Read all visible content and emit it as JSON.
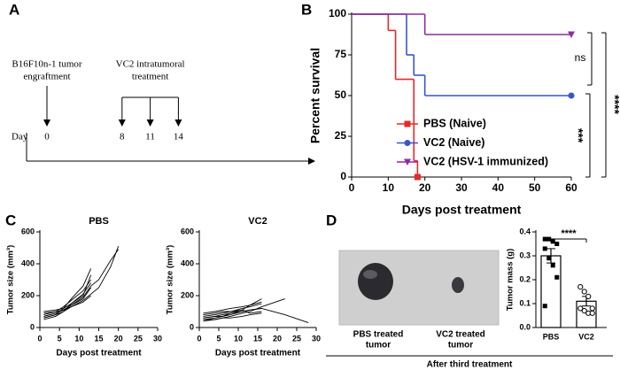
{
  "panels": [
    "A",
    "B",
    "C",
    "D"
  ],
  "timeline": {
    "day_label": "Day",
    "events": [
      {
        "lines": [
          "B16F10n-1 tumor",
          "engraftment"
        ],
        "days": [
          0
        ]
      },
      {
        "lines": [
          "VC2 intratumoral",
          "treatment"
        ],
        "days": [
          8,
          11,
          14
        ]
      }
    ]
  },
  "photo": {
    "labels": [
      [
        "PBS treated",
        "tumor"
      ],
      [
        "VC2 treated",
        "tumor"
      ]
    ],
    "caption": "After third treatment"
  },
  "chart_data": [
    {
      "type": "step",
      "ylabel": "Percent survival",
      "xlabel": "Days post treatment",
      "xlim": [
        0,
        60
      ],
      "xticks": [
        0,
        10,
        20,
        30,
        40,
        50,
        60
      ],
      "ylim": [
        0,
        100
      ],
      "yticks": [
        0,
        25,
        50,
        75,
        100
      ],
      "series": [
        {
          "name": "PBS (Naive)",
          "color": "#e8282b",
          "marker": "square",
          "x": [
            0,
            10,
            12,
            17,
            18
          ],
          "values": [
            100,
            90,
            60,
            10,
            0
          ]
        },
        {
          "name": "VC2 (Naive)",
          "color": "#3a55c4",
          "marker": "circle",
          "x": [
            0,
            15,
            17,
            20,
            60
          ],
          "values": [
            100,
            75,
            62.5,
            50,
            50
          ]
        },
        {
          "name": "VC2 (HSV-1 immunized)",
          "color": "#8e2c9e",
          "marker": "triangle",
          "x": [
            0,
            20,
            60
          ],
          "values": [
            100,
            87.5,
            87.5
          ]
        }
      ],
      "annotations": [
        "ns",
        "****",
        "***"
      ]
    },
    {
      "type": "line",
      "title": "PBS",
      "xlabel": "Days post treatment",
      "ylabel": "Tumor size (mm³)",
      "xlim": [
        0,
        30
      ],
      "xticks": [
        0,
        5,
        10,
        15,
        20,
        25,
        30
      ],
      "ylim": [
        0,
        600
      ],
      "yticks": [
        0,
        200,
        400,
        600
      ],
      "color": "#000000",
      "series": [
        {
          "x": [
            1,
            4,
            6,
            8,
            11,
            13
          ],
          "values": [
            60,
            80,
            120,
            180,
            260,
            370
          ]
        },
        {
          "x": [
            1,
            4,
            6,
            8,
            11,
            13
          ],
          "values": [
            80,
            100,
            130,
            170,
            230,
            300
          ]
        },
        {
          "x": [
            1,
            4,
            6,
            8,
            11,
            13
          ],
          "values": [
            50,
            70,
            100,
            150,
            210,
            280
          ]
        },
        {
          "x": [
            1,
            4,
            6,
            8,
            11,
            13
          ],
          "values": [
            70,
            90,
            110,
            140,
            180,
            250
          ]
        },
        {
          "x": [
            1,
            4,
            6,
            8,
            11,
            13
          ],
          "values": [
            90,
            100,
            110,
            130,
            160,
            200
          ]
        },
        {
          "x": [
            1,
            4,
            6,
            8,
            11,
            13,
            15,
            18,
            20
          ],
          "values": [
            60,
            80,
            100,
            130,
            170,
            210,
            250,
            380,
            510
          ]
        },
        {
          "x": [
            1,
            4,
            6,
            8,
            11,
            13,
            15,
            18,
            20
          ],
          "values": [
            70,
            90,
            110,
            140,
            190,
            260,
            300,
            420,
            490
          ]
        },
        {
          "x": [
            1,
            4,
            6,
            8,
            11,
            13
          ],
          "values": [
            100,
            110,
            120,
            150,
            200,
            330
          ]
        }
      ]
    },
    {
      "type": "line",
      "title": "VC2",
      "xlabel": "Days post treatment",
      "ylabel": "Tumor size (mm³)",
      "xlim": [
        0,
        30
      ],
      "xticks": [
        0,
        5,
        10,
        15,
        20,
        25,
        30
      ],
      "ylim": [
        0,
        600
      ],
      "yticks": [
        0,
        200,
        400,
        600
      ],
      "color": "#000000",
      "series": [
        {
          "x": [
            1,
            4,
            6,
            8,
            11,
            13,
            16
          ],
          "values": [
            50,
            60,
            70,
            90,
            110,
            140,
            180
          ]
        },
        {
          "x": [
            1,
            4,
            6,
            8,
            11,
            13,
            16
          ],
          "values": [
            70,
            80,
            90,
            100,
            120,
            130,
            150
          ]
        },
        {
          "x": [
            1,
            4,
            6,
            8,
            11,
            13,
            16
          ],
          "values": [
            60,
            70,
            70,
            80,
            100,
            110,
            120
          ]
        },
        {
          "x": [
            1,
            4,
            6,
            8,
            11,
            13,
            16,
            22
          ],
          "values": [
            40,
            50,
            60,
            70,
            90,
            100,
            130,
            180
          ]
        },
        {
          "x": [
            1,
            4,
            6,
            8,
            11,
            13,
            16
          ],
          "values": [
            80,
            90,
            100,
            100,
            110,
            90,
            100
          ]
        },
        {
          "x": [
            1,
            4,
            6,
            8,
            11,
            13,
            16
          ],
          "values": [
            50,
            50,
            60,
            60,
            70,
            80,
            90
          ]
        },
        {
          "x": [
            1,
            4,
            6,
            8,
            11,
            13,
            16,
            22,
            28
          ],
          "values": [
            60,
            70,
            80,
            90,
            100,
            110,
            120,
            80,
            30
          ]
        },
        {
          "x": [
            1,
            4,
            6,
            8,
            11,
            13,
            16
          ],
          "values": [
            90,
            100,
            110,
            120,
            130,
            140,
            160
          ]
        }
      ]
    },
    {
      "type": "bar",
      "ylabel": "Tumor mass (g)",
      "categories": [
        "PBS",
        "VC2"
      ],
      "values": [
        0.3,
        0.11
      ],
      "errors": [
        0.03,
        0.02
      ],
      "points": [
        [
          0.37,
          0.37,
          0.36,
          0.35,
          0.33,
          0.29,
          0.26,
          0.21,
          0.09
        ],
        [
          0.17,
          0.15,
          0.13,
          0.08,
          0.08,
          0.07,
          0.06,
          0.06
        ]
      ],
      "point_markers": [
        "square",
        "circle"
      ],
      "color": "#ffffff",
      "ylim": [
        0,
        0.4
      ],
      "yticks": [
        {
          "value": 0,
          "label": "0.0"
        },
        0.1,
        0.2,
        0.3,
        0.4
      ],
      "annotation": "****"
    }
  ]
}
